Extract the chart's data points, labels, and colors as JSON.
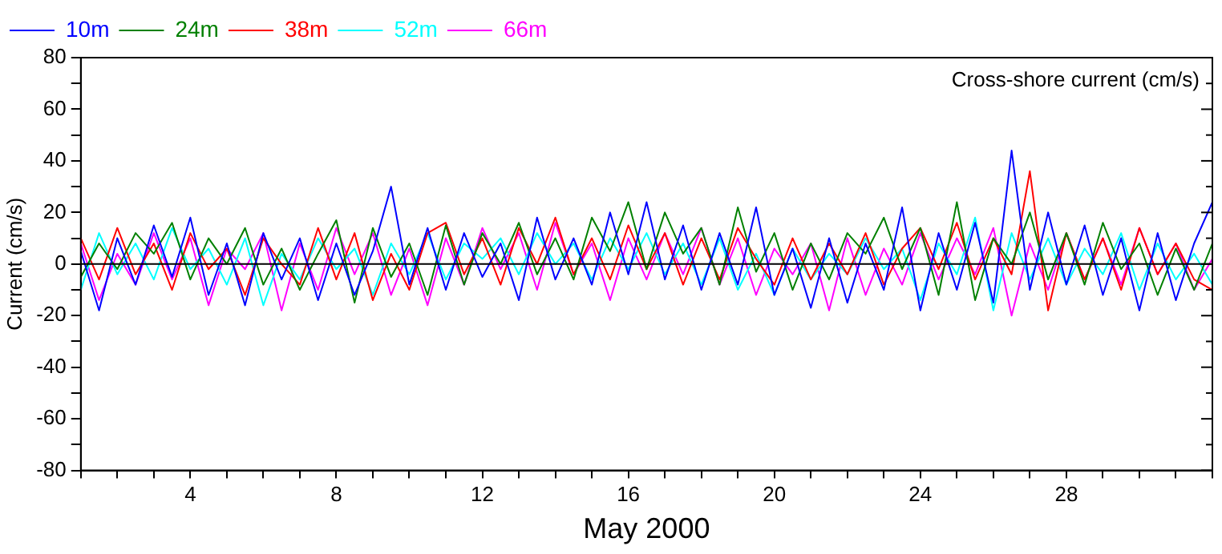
{
  "chart_data": {
    "type": "line",
    "title": "Cross-shore current (cm/s)",
    "xlabel": "May 2000",
    "ylabel": "Current (cm/s)",
    "x": [
      1,
      1.5,
      2,
      2.5,
      3,
      3.5,
      4,
      4.5,
      5,
      5.5,
      6,
      6.5,
      7,
      7.5,
      8,
      8.5,
      9,
      9.5,
      10,
      10.5,
      11,
      11.5,
      12,
      12.5,
      13,
      13.5,
      14,
      14.5,
      15,
      15.5,
      16,
      16.5,
      17,
      17.5,
      18,
      18.5,
      19,
      19.5,
      20,
      20.5,
      21,
      21.5,
      22,
      22.5,
      23,
      23.5,
      24,
      24.5,
      25,
      25.5,
      26,
      26.5,
      27,
      27.5,
      28,
      28.5,
      29,
      29.5,
      30,
      30.5,
      31,
      31.5,
      32
    ],
    "series": [
      {
        "name": "10m",
        "color": "#0000ff",
        "values": [
          5,
          -18,
          10,
          -8,
          15,
          -5,
          18,
          -12,
          8,
          -16,
          12,
          -6,
          10,
          -14,
          8,
          -12,
          5,
          30,
          -8,
          14,
          -10,
          12,
          -5,
          8,
          -14,
          18,
          -6,
          10,
          -8,
          20,
          -4,
          24,
          -6,
          15,
          -10,
          12,
          -8,
          22,
          -12,
          6,
          -17,
          10,
          -15,
          8,
          -10,
          22,
          -18,
          12,
          -10,
          16,
          -15,
          44,
          -10,
          20,
          -8,
          15,
          -12,
          10,
          -18,
          12,
          -14,
          8,
          24
        ]
      },
      {
        "name": "24m",
        "color": "#008000",
        "values": [
          -5,
          8,
          -2,
          12,
          4,
          16,
          -6,
          10,
          0,
          14,
          -8,
          6,
          -10,
          4,
          17,
          -15,
          14,
          -5,
          8,
          -12,
          15,
          -8,
          12,
          0,
          16,
          -4,
          10,
          -6,
          18,
          5,
          24,
          -2,
          20,
          4,
          14,
          -8,
          22,
          -3,
          12,
          -10,
          8,
          -6,
          12,
          4,
          18,
          -2,
          14,
          -12,
          24,
          -14,
          10,
          0,
          20,
          -6,
          12,
          -8,
          16,
          -2,
          8,
          -12,
          6,
          -10,
          8
        ]
      },
      {
        "name": "38m",
        "color": "#ff0000",
        "values": [
          10,
          -6,
          14,
          -4,
          8,
          -10,
          12,
          -2,
          6,
          -12,
          10,
          0,
          -8,
          14,
          -6,
          12,
          -14,
          4,
          -10,
          12,
          16,
          -4,
          10,
          -8,
          14,
          0,
          18,
          -4,
          10,
          -6,
          15,
          -2,
          12,
          -8,
          10,
          -6,
          14,
          2,
          -8,
          10,
          -6,
          8,
          -4,
          12,
          -8,
          6,
          14,
          -2,
          16,
          -6,
          10,
          -4,
          36,
          -18,
          12,
          -6,
          10,
          -10,
          14,
          -4,
          8,
          -6,
          -10
        ]
      },
      {
        "name": "52m",
        "color": "#00ffff",
        "values": [
          -10,
          12,
          -4,
          8,
          -6,
          14,
          -2,
          6,
          -8,
          10,
          -16,
          4,
          -6,
          10,
          -2,
          6,
          -12,
          8,
          -4,
          12,
          -6,
          8,
          2,
          10,
          -4,
          12,
          0,
          8,
          -6,
          10,
          -2,
          12,
          -4,
          8,
          -8,
          10,
          -10,
          4,
          -12,
          6,
          -6,
          4,
          -4,
          10,
          -2,
          6,
          -14,
          8,
          -4,
          18,
          -18,
          12,
          -6,
          10,
          -8,
          6,
          -4,
          12,
          -10,
          8,
          -6,
          4,
          -8
        ]
      },
      {
        "name": "66m",
        "color": "#ff00ff",
        "values": [
          8,
          -14,
          4,
          -8,
          12,
          -6,
          10,
          -16,
          6,
          -2,
          12,
          -18,
          8,
          -10,
          14,
          -4,
          12,
          -12,
          6,
          -16,
          10,
          -8,
          14,
          -2,
          12,
          -10,
          16,
          -4,
          8,
          -14,
          10,
          -6,
          12,
          -4,
          14,
          -8,
          10,
          -12,
          6,
          -4,
          8,
          -18,
          10,
          -12,
          6,
          -8,
          12,
          -6,
          10,
          -4,
          14,
          -20,
          8,
          -10,
          12,
          -6,
          10,
          -8,
          14,
          -4,
          8,
          -10,
          2
        ]
      }
    ],
    "xlim": [
      1,
      32
    ],
    "xticks": [
      {
        "value": 1,
        "label": null
      },
      {
        "value": 2,
        "label": null
      },
      {
        "value": 3,
        "label": null
      },
      4,
      {
        "value": 5,
        "label": null
      },
      {
        "value": 6,
        "label": null
      },
      {
        "value": 7,
        "label": null
      },
      8,
      {
        "value": 9,
        "label": null
      },
      {
        "value": 10,
        "label": null
      },
      {
        "value": 11,
        "label": null
      },
      12,
      {
        "value": 13,
        "label": null
      },
      {
        "value": 14,
        "label": null
      },
      {
        "value": 15,
        "label": null
      },
      16,
      {
        "value": 17,
        "label": null
      },
      {
        "value": 18,
        "label": null
      },
      {
        "value": 19,
        "label": null
      },
      20,
      {
        "value": 21,
        "label": null
      },
      {
        "value": 22,
        "label": null
      },
      {
        "value": 23,
        "label": null
      },
      24,
      {
        "value": 25,
        "label": null
      },
      {
        "value": 26,
        "label": null
      },
      {
        "value": 27,
        "label": null
      },
      28,
      {
        "value": 29,
        "label": null
      },
      {
        "value": 30,
        "label": null
      },
      {
        "value": 31,
        "label": null
      },
      {
        "value": 32,
        "label": null
      }
    ],
    "ylim": [
      -80,
      80
    ],
    "yticks": [
      -80,
      {
        "value": -70,
        "label": null
      },
      -60,
      {
        "value": -50,
        "label": null
      },
      -40,
      {
        "value": -30,
        "label": null
      },
      -20,
      {
        "value": -10,
        "label": null
      },
      0,
      {
        "value": 10,
        "label": null
      },
      20,
      {
        "value": 30,
        "label": null
      },
      40,
      {
        "value": 50,
        "label": null
      },
      60,
      {
        "value": 70,
        "label": null
      },
      80
    ],
    "ref_lines": [
      {
        "axis": "y",
        "value": 0,
        "color": "#000000"
      }
    ],
    "legend": "top left",
    "grid": false,
    "marker": "none",
    "line_style": "solid"
  }
}
